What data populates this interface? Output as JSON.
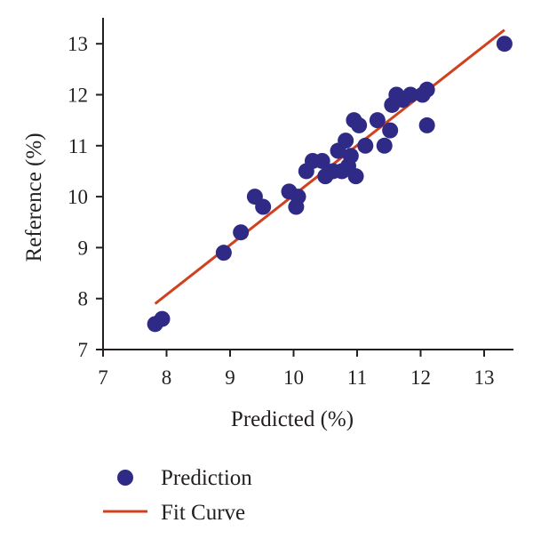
{
  "chart_data": {
    "type": "scatter",
    "title": "",
    "xlabel": "Predicted (%)",
    "ylabel": "Reference (%)",
    "xlim": [
      7,
      13.5
    ],
    "ylim": [
      7,
      13.5
    ],
    "x_ticks": [
      7,
      8,
      9,
      10,
      11,
      12,
      13
    ],
    "y_ticks": [
      7,
      8,
      9,
      10,
      11,
      12,
      13
    ],
    "grid": false,
    "legend_position": "bottom-left",
    "series": [
      {
        "name": "Prediction",
        "kind": "scatter",
        "color": "#2e2a85",
        "points": [
          [
            7.82,
            7.5
          ],
          [
            7.93,
            7.6
          ],
          [
            8.9,
            8.9
          ],
          [
            9.17,
            9.3
          ],
          [
            9.39,
            10.0
          ],
          [
            9.52,
            9.8
          ],
          [
            9.93,
            10.1
          ],
          [
            10.04,
            9.8
          ],
          [
            10.07,
            10.0
          ],
          [
            10.2,
            10.5
          ],
          [
            10.3,
            10.7
          ],
          [
            10.45,
            10.7
          ],
          [
            10.5,
            10.4
          ],
          [
            10.62,
            10.5
          ],
          [
            10.7,
            10.9
          ],
          [
            10.76,
            10.5
          ],
          [
            10.82,
            11.1
          ],
          [
            10.86,
            10.6
          ],
          [
            10.9,
            10.8
          ],
          [
            10.95,
            11.5
          ],
          [
            10.98,
            10.4
          ],
          [
            11.03,
            11.4
          ],
          [
            11.13,
            11.0
          ],
          [
            11.32,
            11.5
          ],
          [
            11.43,
            11.0
          ],
          [
            11.52,
            11.3
          ],
          [
            11.55,
            11.8
          ],
          [
            11.62,
            12.0
          ],
          [
            11.72,
            11.9
          ],
          [
            11.84,
            12.0
          ],
          [
            12.03,
            12.0
          ],
          [
            12.1,
            12.1
          ],
          [
            12.1,
            11.4
          ],
          [
            13.32,
            13.0
          ]
        ]
      },
      {
        "name": "Fit Curve",
        "kind": "line",
        "color": "#d0421f",
        "points": [
          [
            7.82,
            7.9
          ],
          [
            13.32,
            13.27
          ]
        ]
      }
    ]
  }
}
